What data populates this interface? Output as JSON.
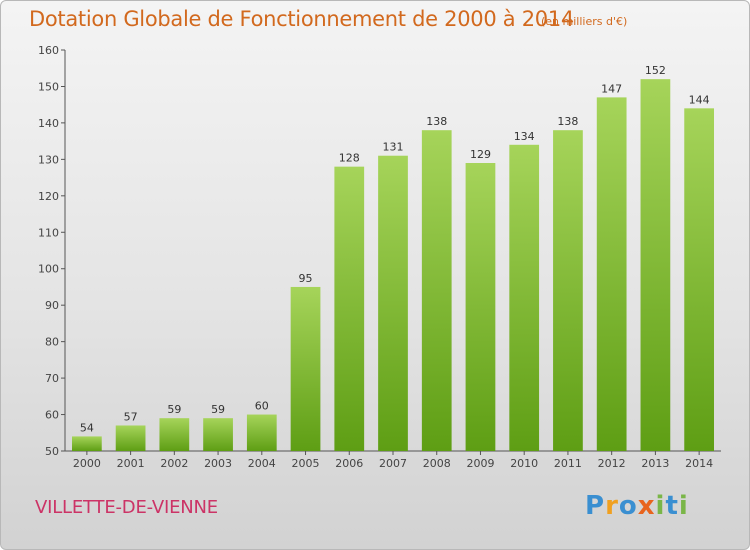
{
  "header": {
    "title": "Dotation Globale de Fonctionnement de 2000 à 2014",
    "subtitle": "(en milliers d'€)"
  },
  "footer": {
    "commune": "VILLETTE-DE-VIENNE",
    "logo": [
      "P",
      "r",
      "o",
      "x",
      "i",
      "t",
      "i"
    ]
  },
  "colors": {
    "title": "#d2691e",
    "commune": "#cc3366",
    "bar_top": "#a6d45a",
    "bar_bottom": "#5e9e14"
  },
  "chart_data": {
    "type": "bar",
    "title": "Dotation Globale de Fonctionnement de 2000 à 2014",
    "subtitle": "(en milliers d'€)",
    "xlabel": "",
    "ylabel": "",
    "categories": [
      "2000",
      "2001",
      "2002",
      "2003",
      "2004",
      "2005",
      "2006",
      "2007",
      "2008",
      "2009",
      "2010",
      "2011",
      "2012",
      "2013",
      "2014"
    ],
    "values": [
      54,
      57,
      59,
      59,
      60,
      95,
      128,
      131,
      138,
      129,
      134,
      138,
      147,
      152,
      144
    ],
    "ylim": [
      50,
      160
    ],
    "yticks": [
      50,
      60,
      70,
      80,
      90,
      100,
      110,
      120,
      130,
      140,
      150,
      160
    ],
    "grid": false,
    "data_labels": true
  }
}
